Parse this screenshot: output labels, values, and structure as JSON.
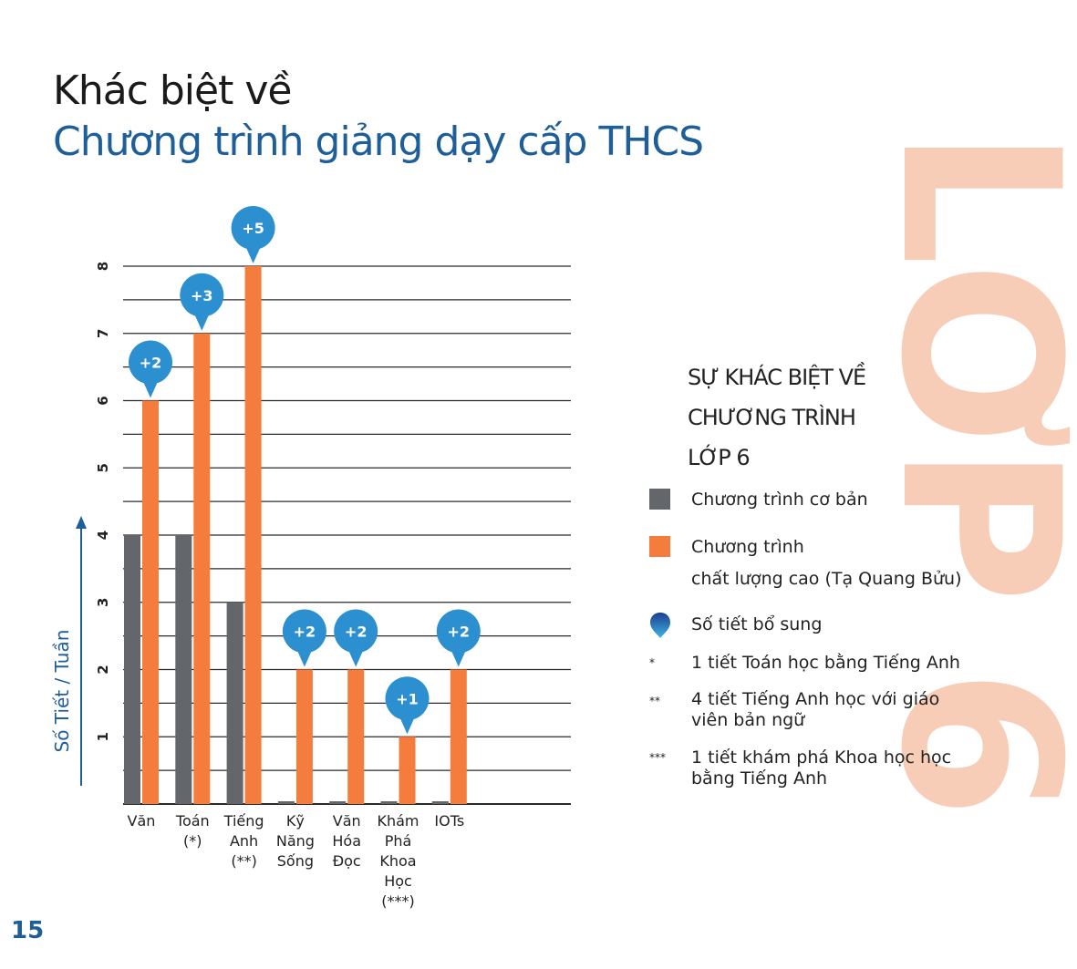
{
  "page": {
    "title_line1": "Khác biệt về",
    "title_line2": "Chương trình giảng dạy cấp THCS",
    "watermark": "LỚP 6",
    "page_number": "15"
  },
  "colors": {
    "basic": "#63666a",
    "high_quality": "#f47c3c",
    "pin": "#2b8fd0",
    "title_blue": "#1f5f99",
    "watermark": "#f7cdb8"
  },
  "legend": {
    "title_lines": [
      "SỰ KHÁC BIỆT VỀ",
      "CHƯƠNG TRÌNH",
      "LỚP 6"
    ],
    "basic_label": "Chương trình cơ bản",
    "high_quality_label_1": "Chương trình",
    "high_quality_label_2": "chất lượng cao (Tạ Quang Bửu)",
    "extra_label": "Số tiết bổ sung",
    "notes": [
      {
        "mark": "*",
        "lines": [
          "1 tiết Toán học bằng Tiếng Anh"
        ]
      },
      {
        "mark": "**",
        "lines": [
          "4 tiết Tiếng Anh học với giáo",
          "viên bản ngữ"
        ]
      },
      {
        "mark": "***",
        "lines": [
          "1 tiết khám phá Khoa học học",
          "bằng Tiếng Anh"
        ]
      }
    ]
  },
  "chart_data": {
    "type": "bar",
    "ylabel": "Số Tiết / Tuần",
    "ylim": [
      0,
      8
    ],
    "yticks": [
      1,
      2,
      3,
      4,
      5,
      6,
      7,
      8
    ],
    "grid": true,
    "categories": [
      [
        "Văn"
      ],
      [
        "Toán",
        "(*)"
      ],
      [
        "Tiếng",
        "Anh",
        "(**)"
      ],
      [
        "Kỹ",
        "Năng",
        "Sống"
      ],
      [
        "Văn",
        "Hóa",
        "Đọc"
      ],
      [
        "Khám",
        "Phá",
        "Khoa",
        "Học",
        "(***)"
      ],
      [
        "IOTs"
      ]
    ],
    "series": [
      {
        "name": "Chương trình cơ bản",
        "values": [
          4,
          4,
          3,
          0,
          0,
          0,
          0
        ]
      },
      {
        "name": "Chương trình chất lượng cao (Tạ Quang Bửu)",
        "values": [
          6,
          7,
          8,
          2,
          2,
          1,
          2
        ]
      }
    ],
    "extra_labels": [
      "+2",
      "+3",
      "+5",
      "+2",
      "+2",
      "+1",
      "+2"
    ]
  }
}
